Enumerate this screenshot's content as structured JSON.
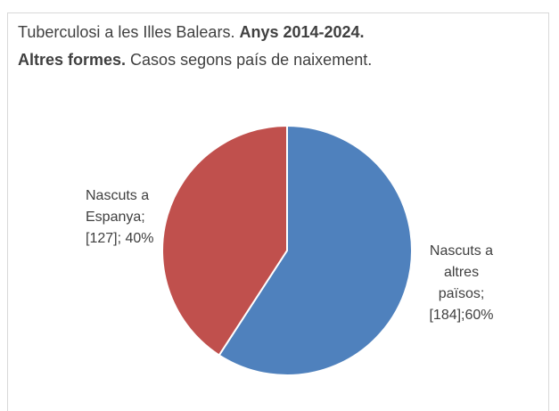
{
  "chart_data": {
    "type": "pie",
    "title_lines": [
      [
        {
          "text": "Tuberculosi a les Illes Balears. ",
          "bold": false
        },
        {
          "text": "Anys 2014-2024.",
          "bold": true
        }
      ],
      [
        {
          "text": "Altres formes.",
          "bold": true
        },
        {
          "text": " Casos segons país de naixement.",
          "bold": false
        }
      ]
    ],
    "values": [
      184,
      127
    ],
    "value_labels": [
      "Nascuts a altres països; [184];60%",
      "Nascuts a Espanya; [127]; 40%"
    ],
    "colors": [
      "#4f81bd",
      "#c0504d"
    ]
  }
}
